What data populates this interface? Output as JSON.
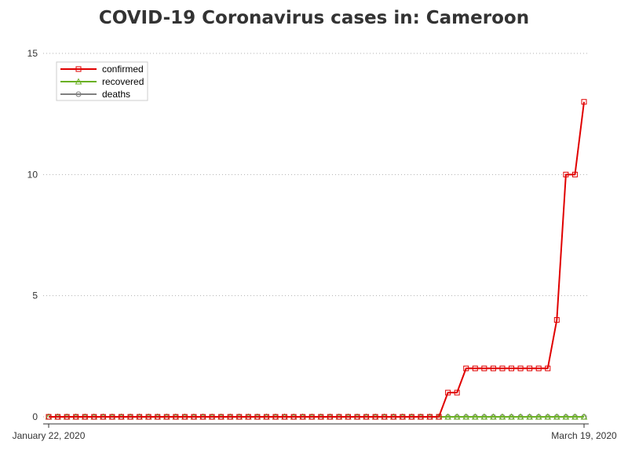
{
  "chart_data": {
    "type": "line",
    "title": "COVID-19 Coronavirus cases in: Cameroon",
    "xlabel": "",
    "ylabel": "",
    "x_tick_labels": [
      "January 22, 2020",
      "March 19, 2020"
    ],
    "x_range": [
      "January 22, 2020",
      "March 19, 2020"
    ],
    "y_ticks": [
      0,
      5,
      10,
      15
    ],
    "ylim": [
      0,
      15
    ],
    "grid": "horizontal dotted",
    "legend_position": "top-left",
    "series": [
      {
        "name": "confirmed",
        "color": "#e00000",
        "marker": "square",
        "values": [
          0,
          0,
          0,
          0,
          0,
          0,
          0,
          0,
          0,
          0,
          0,
          0,
          0,
          0,
          0,
          0,
          0,
          0,
          0,
          0,
          0,
          0,
          0,
          0,
          0,
          0,
          0,
          0,
          0,
          0,
          0,
          0,
          0,
          0,
          0,
          0,
          0,
          0,
          0,
          0,
          0,
          0,
          0,
          0,
          1,
          1,
          2,
          2,
          2,
          2,
          2,
          2,
          2,
          2,
          2,
          2,
          4,
          10,
          10,
          13
        ]
      },
      {
        "name": "recovered",
        "color": "#6ab023",
        "marker": "triangle",
        "values": [
          0,
          0,
          0,
          0,
          0,
          0,
          0,
          0,
          0,
          0,
          0,
          0,
          0,
          0,
          0,
          0,
          0,
          0,
          0,
          0,
          0,
          0,
          0,
          0,
          0,
          0,
          0,
          0,
          0,
          0,
          0,
          0,
          0,
          0,
          0,
          0,
          0,
          0,
          0,
          0,
          0,
          0,
          0,
          0,
          0,
          0,
          0,
          0,
          0,
          0,
          0,
          0,
          0,
          0,
          0,
          0,
          0,
          0,
          0,
          0
        ]
      },
      {
        "name": "deaths",
        "color": "#808080",
        "marker": "circle",
        "values": [
          0,
          0,
          0,
          0,
          0,
          0,
          0,
          0,
          0,
          0,
          0,
          0,
          0,
          0,
          0,
          0,
          0,
          0,
          0,
          0,
          0,
          0,
          0,
          0,
          0,
          0,
          0,
          0,
          0,
          0,
          0,
          0,
          0,
          0,
          0,
          0,
          0,
          0,
          0,
          0,
          0,
          0,
          0,
          0,
          0,
          0,
          0,
          0,
          0,
          0,
          0,
          0,
          0,
          0,
          0,
          0,
          0,
          0,
          0,
          0
        ]
      }
    ]
  }
}
